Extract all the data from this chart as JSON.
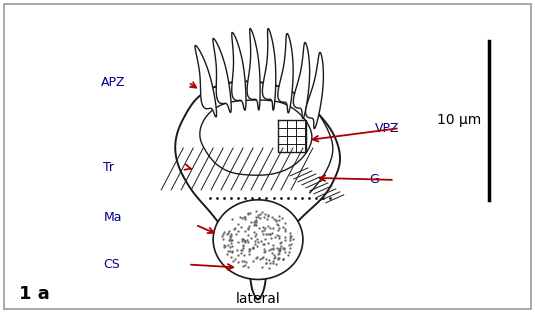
{
  "background_color": "#ffffff",
  "border_color": "#999999",
  "label_color": "#00008B",
  "arrow_color": "#aa0000",
  "drawing_color": "#1a1a1a",
  "title": "1 a",
  "subtitle": "lateral",
  "scale_label": "10 μm",
  "figsize": [
    5.35,
    3.13
  ],
  "dpi": 100,
  "label_fontsize": 9,
  "title_fontsize": 13
}
